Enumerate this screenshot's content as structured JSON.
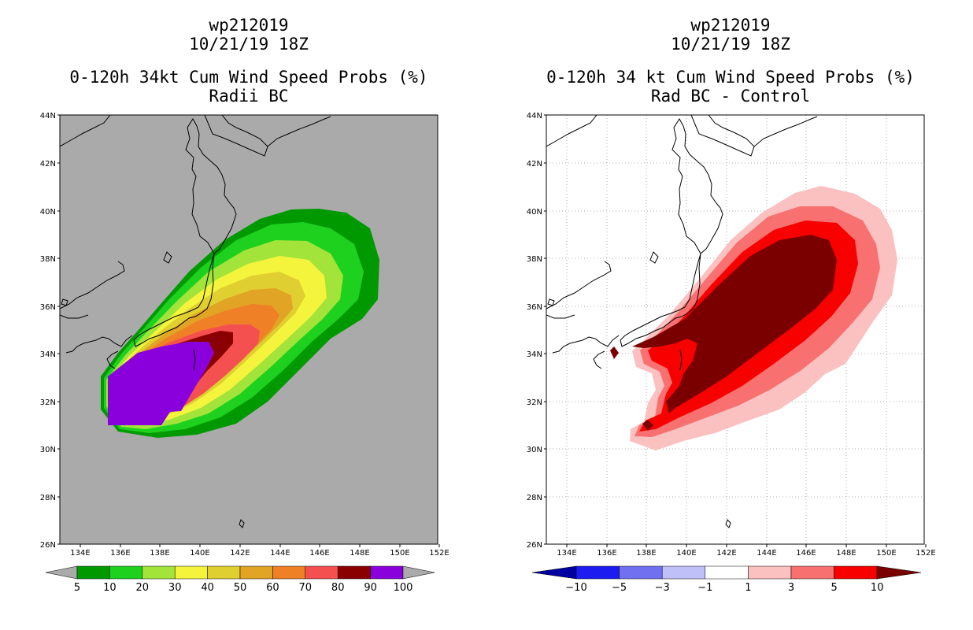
{
  "left_panel": {
    "title_lines": [
      "wp212019",
      "10/21/19 18Z",
      "0-120h 34kt Cum Wind Speed Probs (%)",
      "Radii BC"
    ],
    "colorbar": {
      "labels": [
        "5",
        "10",
        "20",
        "30",
        "40",
        "50",
        "60",
        "70",
        "80",
        "90",
        "100"
      ],
      "colors": [
        "#009a00",
        "#1fd11f",
        "#a3e43a",
        "#f4f43c",
        "#e0cf30",
        "#e1a424",
        "#ef8026",
        "#f55050",
        "#8a0000",
        "#8a00dc"
      ]
    }
  },
  "right_panel": {
    "title_lines": [
      "wp212019",
      "10/21/19 18Z",
      "0-120h 34 kt Cum Wind Speed Probs (%)",
      "Rad BC - Control"
    ],
    "colorbar": {
      "labels": [
        "−10",
        "−5",
        "−3",
        "−1",
        "1",
        "3",
        "5",
        "10"
      ],
      "colors": [
        "#0000a0",
        "#1c1cf0",
        "#7070f0",
        "#c0c0f8",
        "#ffffff",
        "#fbc0c0",
        "#f87070",
        "#f80000",
        "#7a0000"
      ]
    }
  },
  "axes": {
    "lat_labels": [
      "44N",
      "42N",
      "40N",
      "38N",
      "36N",
      "34N",
      "32N",
      "30N",
      "28N",
      "26N"
    ],
    "lon_labels": [
      "134E",
      "136E",
      "138E",
      "140E",
      "142E",
      "144E",
      "146E",
      "148E",
      "150E",
      "152E"
    ]
  }
}
